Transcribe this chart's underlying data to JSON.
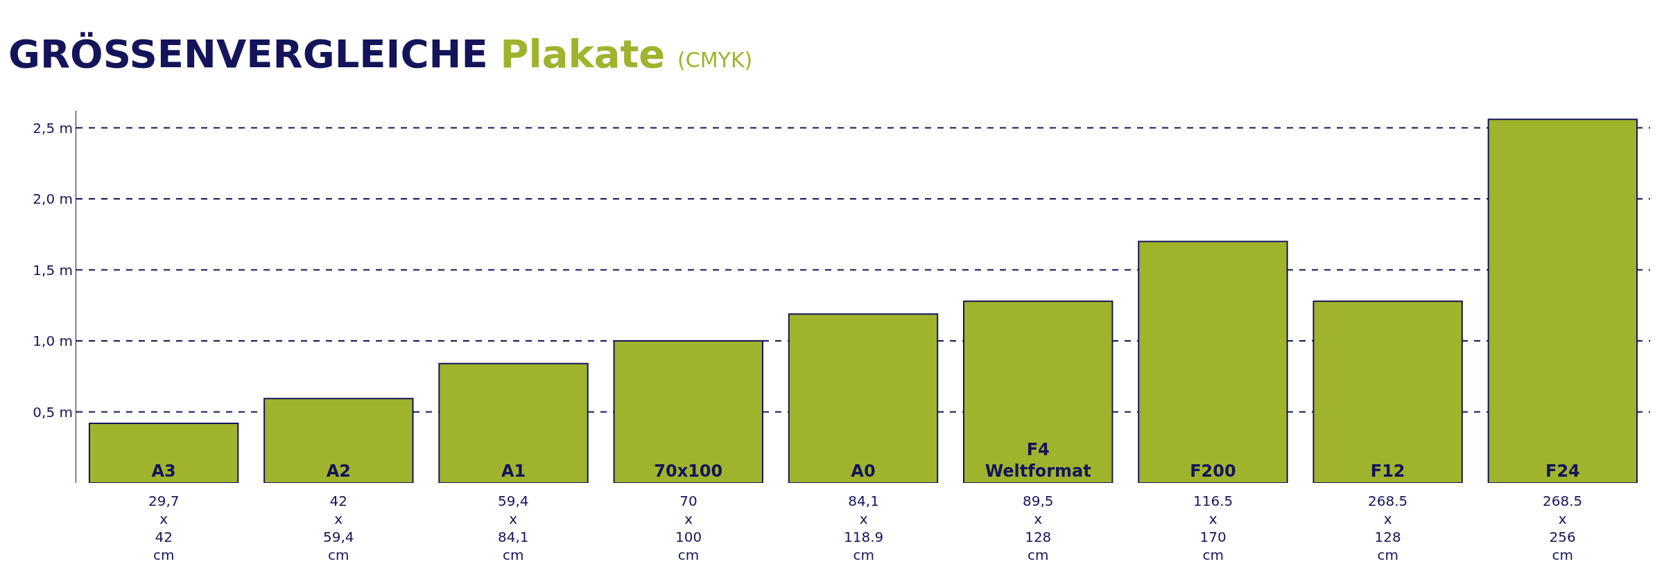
{
  "chart_data": {
    "type": "bar",
    "title": "GRÖSSENVERGLEICHE Plakate",
    "subtitle": "(CMYK)",
    "categories": [
      "A3",
      "A2",
      "A1",
      "70x100",
      "A0",
      "F4\nWeltformat",
      "F200",
      "F12",
      "F24"
    ],
    "values": [
      0.42,
      0.594,
      0.841,
      1.0,
      1.189,
      1.28,
      1.7,
      1.28,
      2.56
    ],
    "color": "#a0b32d",
    "ylim": [
      0,
      2.62
    ],
    "yticks": [
      {
        "value": 0.5,
        "label": "0,5 m"
      },
      {
        "value": 1.0,
        "label": "1,0 m"
      },
      {
        "value": 1.5,
        "label": "1,5 m"
      },
      {
        "value": 2.0,
        "label": "2,0 m"
      },
      {
        "value": 2.5,
        "label": "2,5 m"
      }
    ],
    "grid": "y",
    "annotations": [
      "29,7\nx\n42\ncm",
      "42\nx\n59,4\ncm",
      "59,4\nx\n84,1\ncm",
      "70\nx\n100\ncm",
      "84,1\nx\n118.9\ncm",
      "89,5\nx\n128\ncm",
      "116.5\nx\n170\ncm",
      "268.5\nx\n128\ncm",
      "268.5\nx\n256\ncm"
    ]
  }
}
